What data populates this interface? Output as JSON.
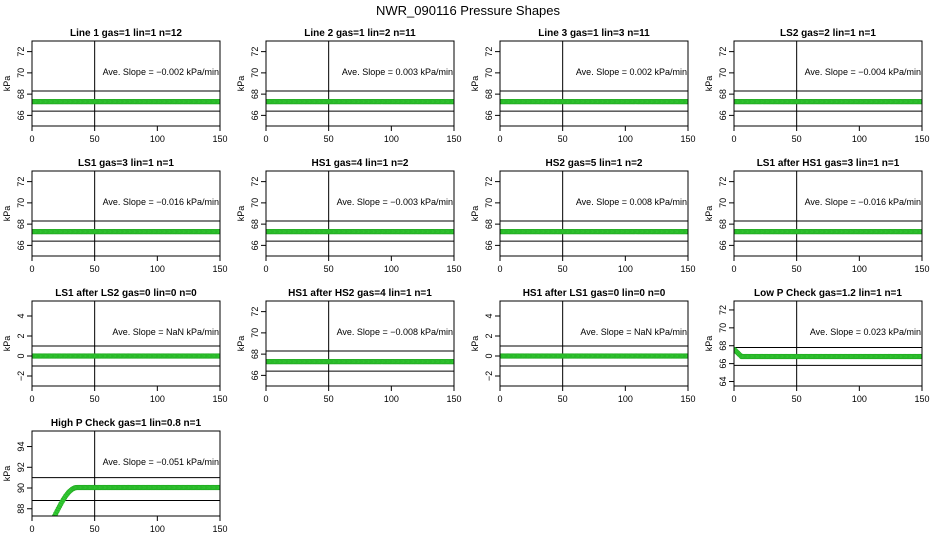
{
  "figure_title": "NWR_090116  Pressure Shapes",
  "marker_color": "#33cc33",
  "marker_edge": "#22aa22",
  "chart_data": [
    {
      "type": "scatter",
      "title": "Line 1 gas=1 lin=1 n=12",
      "ylabel": "kPa",
      "xlim": [
        0,
        150
      ],
      "ylim": [
        65,
        73
      ],
      "xticks": [
        0,
        50,
        100,
        150
      ],
      "yticks": [
        66,
        68,
        70,
        72
      ],
      "annotation": "Ave. Slope =  −0.002  kPa/min",
      "vline": 50,
      "hlines": [
        68.3,
        66.4
      ],
      "series": [
        {
          "shape": "flat",
          "from": 0,
          "to": 150,
          "y": 67.3
        }
      ]
    },
    {
      "type": "scatter",
      "title": "Line 2 gas=1 lin=2 n=11",
      "ylabel": "kPa",
      "xlim": [
        0,
        150
      ],
      "ylim": [
        65,
        73
      ],
      "xticks": [
        0,
        50,
        100,
        150
      ],
      "yticks": [
        66,
        68,
        70,
        72
      ],
      "annotation": "Ave. Slope =  0.003  kPa/min",
      "vline": 50,
      "hlines": [
        68.3,
        66.4
      ],
      "series": [
        {
          "shape": "flat",
          "from": 0,
          "to": 150,
          "y": 67.3
        }
      ]
    },
    {
      "type": "scatter",
      "title": "Line 3 gas=1 lin=3 n=11",
      "ylabel": "kPa",
      "xlim": [
        0,
        150
      ],
      "ylim": [
        65,
        73
      ],
      "xticks": [
        0,
        50,
        100,
        150
      ],
      "yticks": [
        66,
        68,
        70,
        72
      ],
      "annotation": "Ave. Slope =  0.002  kPa/min",
      "vline": 50,
      "hlines": [
        68.3,
        66.4
      ],
      "series": [
        {
          "shape": "flat",
          "from": 0,
          "to": 150,
          "y": 67.3
        }
      ]
    },
    {
      "type": "scatter",
      "title": "LS2 gas=2 lin=1 n=1",
      "ylabel": "kPa",
      "xlim": [
        0,
        150
      ],
      "ylim": [
        65,
        73
      ],
      "xticks": [
        0,
        50,
        100,
        150
      ],
      "yticks": [
        66,
        68,
        70,
        72
      ],
      "annotation": "Ave. Slope =  −0.004  kPa/min",
      "vline": 50,
      "hlines": [
        68.3,
        66.4
      ],
      "series": [
        {
          "shape": "flat",
          "from": 0,
          "to": 150,
          "y": 67.3
        }
      ]
    },
    {
      "type": "scatter",
      "title": "LS1 gas=3 lin=1 n=1",
      "ylabel": "kPa",
      "xlim": [
        0,
        150
      ],
      "ylim": [
        65,
        73
      ],
      "xticks": [
        0,
        50,
        100,
        150
      ],
      "yticks": [
        66,
        68,
        70,
        72
      ],
      "annotation": "Ave. Slope =  −0.016  kPa/min",
      "vline": 50,
      "hlines": [
        68.3,
        66.4
      ],
      "series": [
        {
          "shape": "flat",
          "from": 0,
          "to": 150,
          "y": 67.3
        }
      ]
    },
    {
      "type": "scatter",
      "title": "HS1 gas=4 lin=1 n=2",
      "ylabel": "kPa",
      "xlim": [
        0,
        150
      ],
      "ylim": [
        65,
        73
      ],
      "xticks": [
        0,
        50,
        100,
        150
      ],
      "yticks": [
        66,
        68,
        70,
        72
      ],
      "annotation": "Ave. Slope =  −0.003  kPa/min",
      "vline": 50,
      "hlines": [
        68.3,
        66.4
      ],
      "series": [
        {
          "shape": "flat",
          "from": 0,
          "to": 150,
          "y": 67.3
        }
      ]
    },
    {
      "type": "scatter",
      "title": "HS2 gas=5 lin=1 n=2",
      "ylabel": "kPa",
      "xlim": [
        0,
        150
      ],
      "ylim": [
        65,
        73
      ],
      "xticks": [
        0,
        50,
        100,
        150
      ],
      "yticks": [
        66,
        68,
        70,
        72
      ],
      "annotation": "Ave. Slope =  0.008  kPa/min",
      "vline": 50,
      "hlines": [
        68.3,
        66.4
      ],
      "series": [
        {
          "shape": "flat",
          "from": 0,
          "to": 150,
          "y": 67.3
        }
      ]
    },
    {
      "type": "scatter",
      "title": "LS1 after HS1 gas=3 lin=1 n=1",
      "ylabel": "kPa",
      "xlim": [
        0,
        150
      ],
      "ylim": [
        65,
        73
      ],
      "xticks": [
        0,
        50,
        100,
        150
      ],
      "yticks": [
        66,
        68,
        70,
        72
      ],
      "annotation": "Ave. Slope =  −0.016  kPa/min",
      "vline": 50,
      "hlines": [
        68.3,
        66.4
      ],
      "series": [
        {
          "shape": "flat",
          "from": 0,
          "to": 150,
          "y": 67.3
        }
      ]
    },
    {
      "type": "scatter",
      "title": "LS1 after LS2 gas=0 lin=0 n=0",
      "ylabel": "kPa",
      "xlim": [
        0,
        150
      ],
      "ylim": [
        -3,
        5.5
      ],
      "xticks": [
        0,
        50,
        100,
        150
      ],
      "yticks": [
        -2,
        0,
        2,
        4
      ],
      "annotation": "Ave. Slope =  NaN  kPa/min",
      "vline": 50,
      "hlines": [
        1,
        -1
      ],
      "series": [
        {
          "shape": "flat",
          "from": 0,
          "to": 150,
          "y": 0
        }
      ]
    },
    {
      "type": "scatter",
      "title": "HS1 after HS2 gas=4 lin=1 n=1",
      "ylabel": "kPa",
      "xlim": [
        0,
        150
      ],
      "ylim": [
        65,
        73
      ],
      "xticks": [
        0,
        50,
        100,
        150
      ],
      "yticks": [
        66,
        68,
        70,
        72
      ],
      "annotation": "Ave. Slope =  −0.008  kPa/min",
      "vline": 50,
      "hlines": [
        68.3,
        66.4
      ],
      "series": [
        {
          "shape": "flat",
          "from": 0,
          "to": 150,
          "y": 67.3
        }
      ]
    },
    {
      "type": "scatter",
      "title": "HS1 after LS1 gas=0 lin=0 n=0",
      "ylabel": "kPa",
      "xlim": [
        0,
        150
      ],
      "ylim": [
        -3,
        5.5
      ],
      "xticks": [
        0,
        50,
        100,
        150
      ],
      "yticks": [
        -2,
        0,
        2,
        4
      ],
      "annotation": "Ave. Slope =  NaN  kPa/min",
      "vline": 50,
      "hlines": [
        1,
        -1
      ],
      "series": [
        {
          "shape": "flat",
          "from": 0,
          "to": 150,
          "y": 0
        }
      ]
    },
    {
      "type": "scatter",
      "title": "Low P Check gas=1.2 lin=1 n=1",
      "ylabel": "kPa",
      "xlim": [
        0,
        150
      ],
      "ylim": [
        63.5,
        73
      ],
      "xticks": [
        0,
        50,
        100,
        150
      ],
      "yticks": [
        64,
        66,
        68,
        70,
        72
      ],
      "annotation": "Ave. Slope =  0.023  kPa/min",
      "vline": 50,
      "hlines": [
        67.8,
        65.8
      ],
      "series": [
        {
          "shape": "drop",
          "from": 0,
          "to": 150,
          "y": 66.8,
          "y_start": 67.6,
          "settle_x": 6
        }
      ]
    },
    {
      "type": "scatter",
      "title": "High P Check gas=1 lin=0.8 n=1",
      "ylabel": "kPa",
      "xlim": [
        0,
        150
      ],
      "ylim": [
        87.3,
        95.5
      ],
      "xticks": [
        0,
        50,
        100,
        150
      ],
      "yticks": [
        88,
        90,
        92,
        94
      ],
      "annotation": "Ave. Slope =  −0.051  kPa/min",
      "vline": 50,
      "hlines": [
        91,
        88.8
      ],
      "series": [
        {
          "shape": "rise",
          "from": 18,
          "to": 150,
          "y": 90.05,
          "y_start": 87.3,
          "settle_x": 36
        }
      ]
    }
  ]
}
